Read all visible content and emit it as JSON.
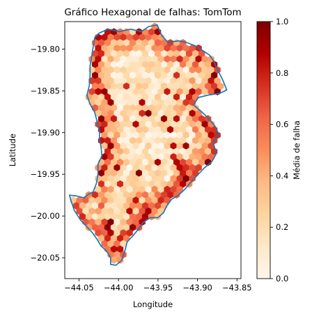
{
  "chart_data": {
    "type": "heatmap",
    "subtype": "hexbin",
    "title": "Gráfico Hexagonal de falhas: TomTom",
    "xlabel": "Longitude",
    "ylabel": "Latitude",
    "xlim": [
      -44.068,
      -43.845
    ],
    "ylim": [
      -20.075,
      -19.767
    ],
    "xticks": [
      "−44.05",
      "−44.00",
      "−43.95",
      "−43.90",
      "−43.85"
    ],
    "xtick_values": [
      -44.05,
      -44.0,
      -43.95,
      -43.9,
      -43.85
    ],
    "yticks": [
      "−19.80",
      "−19.85",
      "−19.90",
      "−19.95",
      "−20.00",
      "−20.05"
    ],
    "ytick_values": [
      -19.8,
      -19.85,
      -19.9,
      -19.95,
      -20.0,
      -20.05
    ],
    "colormap": "OrRd",
    "colorbar": {
      "label": "Média de falha",
      "range": [
        0,
        1
      ],
      "ticks": [
        "0.0",
        "0.2",
        "0.4",
        "0.6",
        "0.8",
        "1.0"
      ],
      "tick_values": [
        0,
        0.2,
        0.4,
        0.6,
        0.8,
        1.0
      ]
    },
    "boundary_color": "#1f77b4",
    "boundary": [
      [
        -44.025,
        -19.781
      ],
      [
        -44.013,
        -19.776
      ],
      [
        -43.999,
        -19.779
      ],
      [
        -43.985,
        -19.776
      ],
      [
        -43.971,
        -19.779
      ],
      [
        -43.962,
        -19.773
      ],
      [
        -43.951,
        -19.771
      ],
      [
        -43.945,
        -19.784
      ],
      [
        -43.937,
        -19.792
      ],
      [
        -43.924,
        -19.79
      ],
      [
        -43.914,
        -19.792
      ],
      [
        -43.903,
        -19.796
      ],
      [
        -43.893,
        -19.802
      ],
      [
        -43.885,
        -19.807
      ],
      [
        -43.879,
        -19.815
      ],
      [
        -43.874,
        -19.826
      ],
      [
        -43.868,
        -19.837
      ],
      [
        -43.863,
        -19.849
      ],
      [
        -43.872,
        -19.853
      ],
      [
        -43.886,
        -19.855
      ],
      [
        -43.899,
        -19.858
      ],
      [
        -43.905,
        -19.867
      ],
      [
        -43.896,
        -19.874
      ],
      [
        -43.887,
        -19.882
      ],
      [
        -43.878,
        -19.892
      ],
      [
        -43.873,
        -19.902
      ],
      [
        -43.88,
        -19.913
      ],
      [
        -43.876,
        -19.925
      ],
      [
        -43.882,
        -19.935
      ],
      [
        -43.891,
        -19.942
      ],
      [
        -43.9,
        -19.951
      ],
      [
        -43.909,
        -19.96
      ],
      [
        -43.916,
        -19.968
      ],
      [
        -43.924,
        -19.975
      ],
      [
        -43.933,
        -19.98
      ],
      [
        -43.939,
        -19.988
      ],
      [
        -43.943,
        -19.996
      ],
      [
        -43.95,
        -20.002
      ],
      [
        -43.96,
        -20.002
      ],
      [
        -43.969,
        -20.008
      ],
      [
        -43.975,
        -20.016
      ],
      [
        -43.982,
        -20.024
      ],
      [
        -43.989,
        -20.031
      ],
      [
        -43.992,
        -20.042
      ],
      [
        -43.996,
        -20.053
      ],
      [
        -44.003,
        -20.059
      ],
      [
        -44.01,
        -20.058
      ],
      [
        -44.01,
        -20.05
      ],
      [
        -44.015,
        -20.042
      ],
      [
        -44.022,
        -20.036
      ],
      [
        -44.027,
        -20.028
      ],
      [
        -44.033,
        -20.02
      ],
      [
        -44.04,
        -20.013
      ],
      [
        -44.048,
        -20.005
      ],
      [
        -44.056,
        -19.993
      ],
      [
        -44.06,
        -19.982
      ],
      [
        -44.062,
        -19.975
      ],
      [
        -44.053,
        -19.976
      ],
      [
        -44.044,
        -19.978
      ],
      [
        -44.038,
        -19.974
      ],
      [
        -44.032,
        -19.971
      ],
      [
        -44.028,
        -19.961
      ],
      [
        -44.026,
        -19.95
      ],
      [
        -44.026,
        -19.938
      ],
      [
        -44.021,
        -19.928
      ],
      [
        -44.022,
        -19.918
      ],
      [
        -44.024,
        -19.908
      ],
      [
        -44.024,
        -19.897
      ],
      [
        -44.027,
        -19.887
      ],
      [
        -44.03,
        -19.876
      ],
      [
        -44.036,
        -19.866
      ],
      [
        -44.04,
        -19.855
      ],
      [
        -44.037,
        -19.844
      ],
      [
        -44.036,
        -19.832
      ],
      [
        -44.036,
        -19.82
      ],
      [
        -44.034,
        -19.809
      ],
      [
        -44.032,
        -19.797
      ],
      [
        -44.03,
        -19.786
      ],
      [
        -44.025,
        -19.781
      ]
    ]
  }
}
